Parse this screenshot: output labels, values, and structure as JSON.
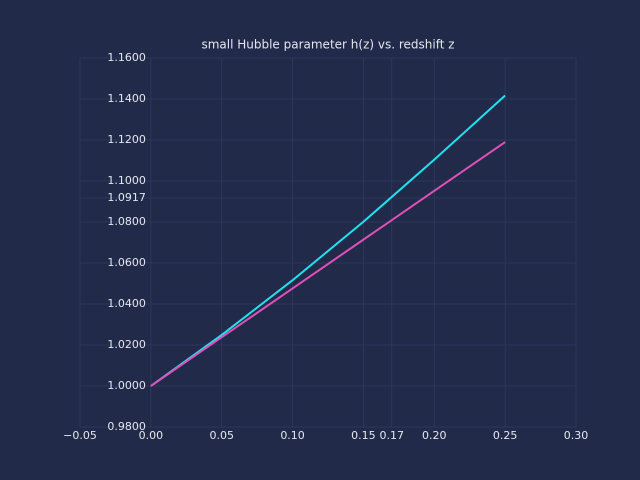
{
  "chart_data": {
    "type": "line",
    "title": "small Hubble parameter h(z) vs. redshift z",
    "x": [
      0,
      0.05,
      0.1,
      0.15,
      0.2,
      0.25
    ],
    "series": [
      {
        "color": "#22e0f0",
        "values": [
          1.0,
          1.0249,
          1.0516,
          1.0801,
          1.1104,
          1.1417
        ]
      },
      {
        "color": "#e050b8",
        "values": [
          1.0,
          1.0238,
          1.0476,
          1.0714,
          1.0952,
          1.119
        ]
      }
    ],
    "xlim": [
      -0.05,
      0.3
    ],
    "xticks": [
      {
        "value": -0.05,
        "label": "−0.05"
      },
      {
        "value": 0,
        "label": "0.00"
      },
      0.05,
      {
        "value": 0.1,
        "label": "0.10"
      },
      0.15,
      0.17,
      {
        "value": 0.2,
        "label": "0.20"
      },
      0.25,
      {
        "value": 0.3,
        "label": "0.30"
      }
    ],
    "ylim": [
      0.98,
      1.16
    ],
    "yticks": [
      {
        "value": 0.98,
        "label": "0.9800"
      },
      {
        "value": 1.0,
        "label": "1.0000"
      },
      {
        "value": 1.02,
        "label": "1.0200"
      },
      {
        "value": 1.04,
        "label": "1.0400"
      },
      {
        "value": 1.06,
        "label": "1.0600"
      },
      {
        "value": 1.08,
        "label": "1.0800"
      },
      {
        "value": 1.0917,
        "label": "1.0917"
      },
      {
        "value": 1.1,
        "label": "1.1000"
      },
      {
        "value": 1.12,
        "label": "1.1200"
      },
      {
        "value": 1.14,
        "label": "1.1400"
      },
      {
        "value": 1.16,
        "label": "1.1600"
      }
    ],
    "grid": true
  }
}
